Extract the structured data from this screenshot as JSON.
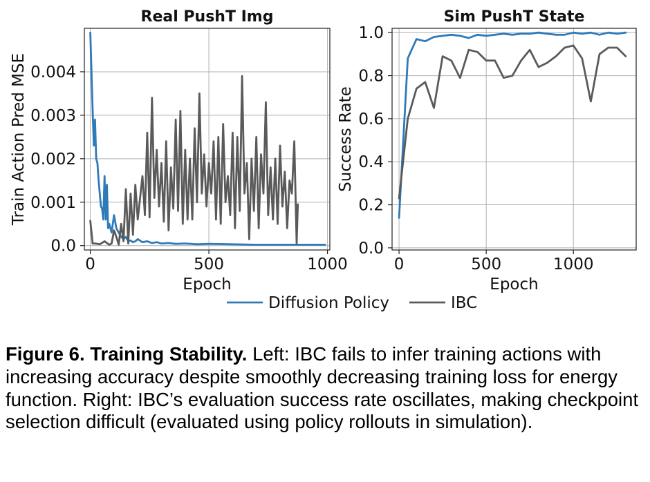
{
  "chart_data": [
    {
      "type": "line",
      "title": "Real PushT Img",
      "xlabel": "Epoch",
      "ylabel": "Train Action Pred MSE",
      "xlim": [
        -25,
        1010
      ],
      "ylim": [
        -0.0001,
        0.005
      ],
      "xticks": [
        0,
        500,
        1000
      ],
      "xtick_labels": [
        "0",
        "500",
        "1000"
      ],
      "yticks": [
        0.0,
        0.001,
        0.002,
        0.003,
        0.004
      ],
      "ytick_labels": [
        "0.0",
        "0.001",
        "0.002",
        "0.003",
        "0.004"
      ],
      "grid": true,
      "series": [
        {
          "name": "Diffusion Policy",
          "color": "#2f7ab9",
          "x": [
            0,
            5,
            10,
            15,
            20,
            25,
            30,
            35,
            40,
            45,
            50,
            55,
            60,
            65,
            70,
            75,
            80,
            90,
            100,
            110,
            120,
            130,
            140,
            150,
            160,
            170,
            180,
            190,
            200,
            220,
            240,
            260,
            280,
            300,
            330,
            360,
            400,
            450,
            500,
            600,
            700,
            800,
            900,
            990
          ],
          "y": [
            0.0049,
            0.004,
            0.0031,
            0.0023,
            0.0029,
            0.002,
            0.0019,
            0.0015,
            0.0012,
            0.0009,
            0.00085,
            0.0006,
            0.0016,
            0.0006,
            0.0014,
            0.0004,
            0.0005,
            0.0003,
            0.0007,
            0.0004,
            0.0003,
            0.0002,
            0.00015,
            0.0002,
            0.0001,
            0.00012,
            8e-05,
            0.0001,
            0.00015,
            8e-05,
            0.0001,
            6e-05,
            8e-05,
            5e-05,
            6e-05,
            4e-05,
            5e-05,
            3e-05,
            4e-05,
            3e-05,
            2e-05,
            2e-05,
            2e-05,
            2e-05
          ]
        },
        {
          "name": "IBC",
          "color": "#5a5a5a",
          "x": [
            0,
            10,
            20,
            40,
            60,
            80,
            90,
            100,
            110,
            120,
            130,
            140,
            150,
            160,
            170,
            180,
            190,
            200,
            210,
            220,
            230,
            240,
            250,
            260,
            270,
            280,
            290,
            300,
            310,
            320,
            330,
            340,
            350,
            360,
            370,
            380,
            390,
            400,
            410,
            420,
            430,
            440,
            450,
            460,
            470,
            480,
            490,
            500,
            510,
            520,
            530,
            540,
            550,
            560,
            570,
            580,
            590,
            600,
            610,
            620,
            630,
            640,
            650,
            660,
            670,
            680,
            690,
            700,
            710,
            720,
            730,
            740,
            750,
            760,
            770,
            780,
            790,
            800,
            810,
            820,
            830,
            840,
            850,
            860,
            870,
            875
          ],
          "y": [
            0.00057,
            5e-05,
            5e-05,
            3e-05,
            0.0001,
            2e-05,
            5e-05,
            0.00035,
            0.0002,
            2e-05,
            0.0005,
            0.0001,
            0.0013,
            5e-05,
            0.0012,
            0.00025,
            0.0014,
            0.0006,
            0.0011,
            0.0016,
            0.0007,
            0.0026,
            0.00065,
            0.0034,
            0.0011,
            0.0022,
            0.0009,
            0.0019,
            0.00055,
            0.0024,
            0.00035,
            0.0018,
            0.00085,
            0.0029,
            0.0008,
            0.0031,
            0.0005,
            0.0022,
            0.0006,
            0.002,
            0.0006,
            0.0027,
            0.001,
            0.0035,
            0.0012,
            0.0021,
            0.0009,
            0.0019,
            0.0012,
            0.0024,
            0.0006,
            0.0025,
            0.0005,
            0.0028,
            0.001,
            0.0016,
            0.0007,
            0.0026,
            0.0004,
            0.0025,
            0.0008,
            0.0039,
            0.0012,
            0.0019,
            0.00015,
            0.002,
            0.0008,
            0.0025,
            0.0004,
            0.0021,
            0.0012,
            0.0033,
            0.0007,
            0.0018,
            0.0006,
            0.002,
            0.0005,
            0.0023,
            0.0009,
            0.0017,
            0.0004,
            0.0015,
            0.0012,
            0.0024,
            5e-05,
            0.00095
          ]
        }
      ]
    },
    {
      "type": "line",
      "title": "Sim PushT State",
      "xlabel": "Epoch",
      "ylabel": "Success Rate",
      "xlim": [
        -40,
        1360
      ],
      "ylim": [
        -0.01,
        1.02
      ],
      "xticks": [
        0,
        500,
        1000
      ],
      "xtick_labels": [
        "0",
        "500",
        "1000"
      ],
      "yticks": [
        0.0,
        0.2,
        0.4,
        0.6,
        0.8,
        1.0
      ],
      "ytick_labels": [
        "0.0",
        "0.2",
        "0.4",
        "0.6",
        "0.8",
        "1.0"
      ],
      "grid": true,
      "series": [
        {
          "name": "Diffusion Policy",
          "color": "#2f7ab9",
          "x": [
            0,
            50,
            100,
            150,
            200,
            250,
            300,
            350,
            400,
            450,
            500,
            550,
            600,
            650,
            700,
            750,
            800,
            850,
            900,
            950,
            1000,
            1050,
            1100,
            1150,
            1200,
            1250,
            1300
          ],
          "y": [
            0.14,
            0.88,
            0.97,
            0.96,
            0.98,
            0.985,
            0.99,
            0.985,
            0.975,
            0.99,
            0.985,
            0.99,
            0.995,
            0.99,
            0.995,
            0.995,
            1.0,
            0.995,
            0.99,
            0.99,
            1.0,
            0.995,
            1.0,
            0.99,
            1.0,
            0.995,
            1.0
          ]
        },
        {
          "name": "IBC",
          "color": "#5a5a5a",
          "x": [
            0,
            50,
            100,
            150,
            200,
            250,
            300,
            350,
            400,
            450,
            500,
            550,
            600,
            650,
            700,
            750,
            800,
            850,
            900,
            950,
            1000,
            1050,
            1100,
            1150,
            1200,
            1250,
            1300
          ],
          "y": [
            0.23,
            0.6,
            0.74,
            0.77,
            0.65,
            0.89,
            0.87,
            0.79,
            0.92,
            0.91,
            0.87,
            0.87,
            0.79,
            0.8,
            0.87,
            0.92,
            0.84,
            0.86,
            0.89,
            0.93,
            0.94,
            0.88,
            0.68,
            0.9,
            0.93,
            0.93,
            0.89
          ]
        }
      ]
    }
  ],
  "legend": {
    "entries": [
      {
        "label": "Diffusion Policy",
        "color": "#2f7ab9"
      },
      {
        "label": "IBC",
        "color": "#5a5a5a"
      }
    ]
  },
  "caption": {
    "label": "Figure 6.",
    "heading": "Training Stability.",
    "text": "Left: IBC fails to infer training actions with increasing accuracy despite smoothly decreasing training loss for energy function. Right: IBC’s evaluation success rate oscillates, making checkpoint selection difficult (evaluated using policy rollouts in simulation)."
  }
}
